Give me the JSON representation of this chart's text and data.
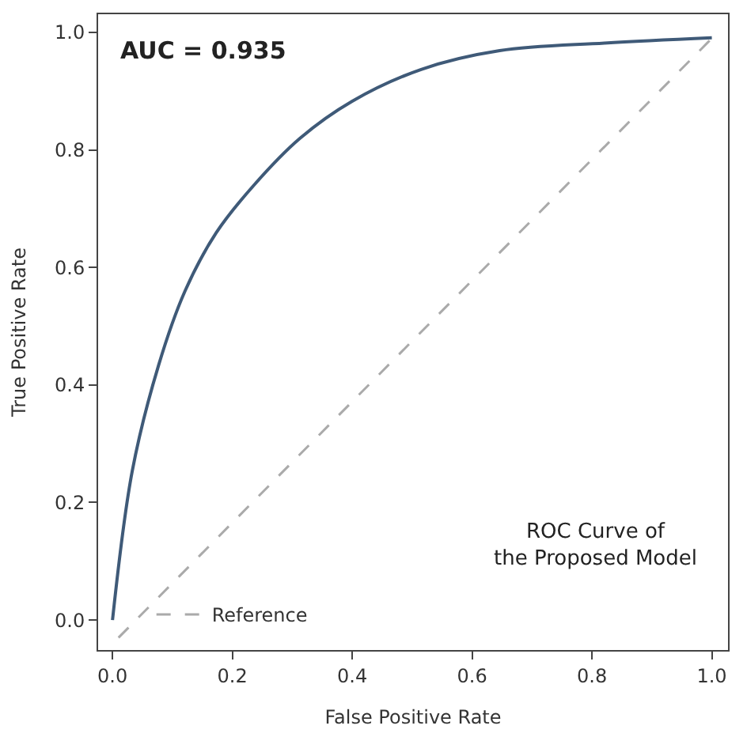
{
  "chart_data": {
    "type": "line",
    "xlabel": "False Positive Rate",
    "ylabel": "True Positive Rate",
    "xlim": [
      -0.024,
      1.027
    ],
    "ylim": [
      -0.051,
      1.031
    ],
    "xticks": [
      {
        "value": 0,
        "label": "0.0"
      },
      {
        "value": 0.2,
        "label": "0.2"
      },
      {
        "value": 0.4,
        "label": "0.4"
      },
      {
        "value": 0.6,
        "label": "0.6"
      },
      {
        "value": 0.8,
        "label": "0.8"
      },
      {
        "value": 1,
        "label": "1.0"
      }
    ],
    "yticks": [
      {
        "value": 0,
        "label": "0.0"
      },
      {
        "value": 0.2,
        "label": "0.2"
      },
      {
        "value": 0.4,
        "label": "0.4"
      },
      {
        "value": 0.6,
        "label": "0.6"
      },
      {
        "value": 0.8,
        "label": "0.8"
      },
      {
        "value": 1,
        "label": "1.0"
      }
    ],
    "legend": "bottom left",
    "marker": "none",
    "series": [
      {
        "color": "#3f5a78",
        "line_style": "solid",
        "x": [
          0,
          0.033,
          0.077,
          0.121,
          0.173,
          0.235,
          0.313,
          0.4,
          0.515,
          0.646,
          0.821,
          1.0
        ],
        "values": [
          0,
          0.254,
          0.434,
          0.56,
          0.659,
          0.739,
          0.82,
          0.883,
          0.937,
          0.969,
          0.982,
          0.991
        ]
      },
      {
        "name": "Reference",
        "color": "#aaaaaa",
        "line_style": "dashed",
        "x": [
          0.01,
          1.0
        ],
        "values": [
          -0.03,
          0.99
        ]
      }
    ],
    "annotations": [
      "AUC = 0.935",
      "ROC Curve of\nthe Proposed Model"
    ]
  }
}
